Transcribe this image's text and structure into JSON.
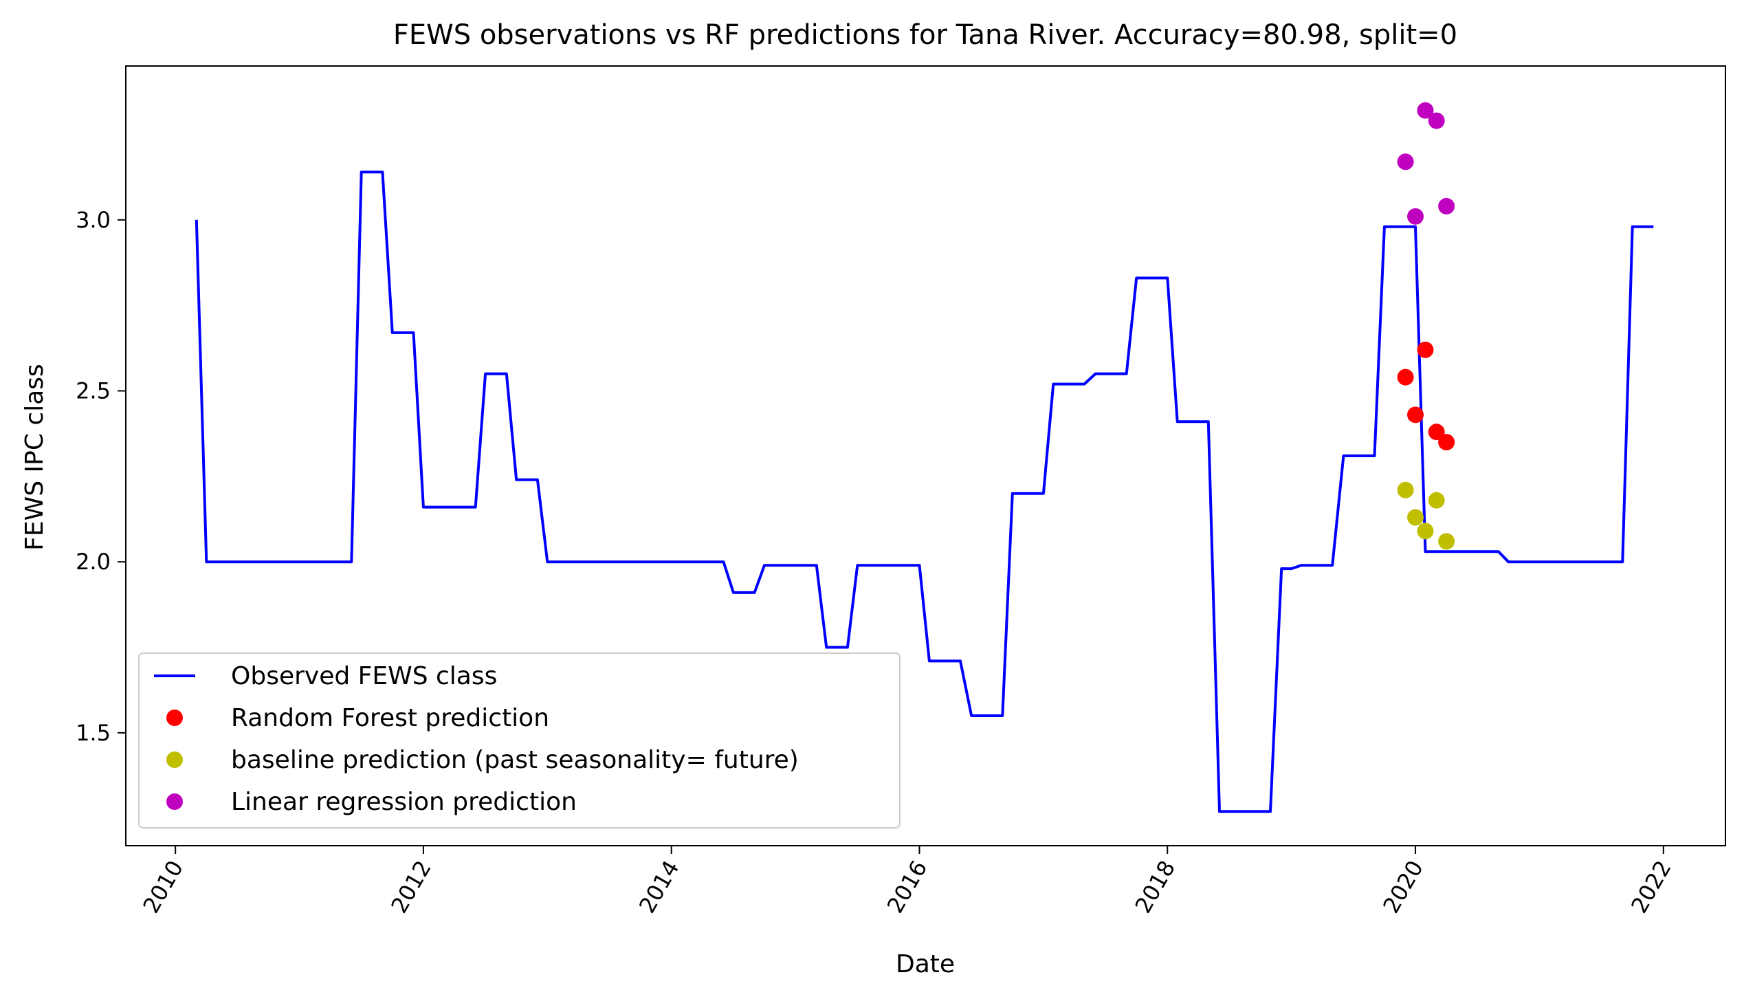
{
  "chart_data": {
    "type": "line",
    "title": "FEWS observations vs RF predictions for Tana River. Accuracy=80.98, split=0",
    "xlabel": "Date",
    "ylabel": "FEWS IPC class",
    "xlim": [
      2009.6,
      2022.5
    ],
    "ylim": [
      1.17,
      3.45
    ],
    "x_ticks": [
      {
        "value": 2010,
        "label": "2010"
      },
      {
        "value": 2012,
        "label": "2012"
      },
      {
        "value": 2014,
        "label": "2014"
      },
      {
        "value": 2016,
        "label": "2016"
      },
      {
        "value": 2018,
        "label": "2018"
      },
      {
        "value": 2020,
        "label": "2020"
      },
      {
        "value": 2022,
        "label": "2022"
      }
    ],
    "y_ticks": [
      {
        "value": 1.5,
        "label": "1.5"
      },
      {
        "value": 2.0,
        "label": "2.0"
      },
      {
        "value": 2.5,
        "label": "2.5"
      },
      {
        "value": 3.0,
        "label": "3.0"
      }
    ],
    "grid": false,
    "legend_position": "lower-left",
    "series": [
      {
        "name": "Observed FEWS class",
        "kind": "line",
        "color": "#0000ff",
        "x": [
          2010.17,
          2010.25,
          2011.42,
          2011.5,
          2011.67,
          2011.75,
          2011.92,
          2012.0,
          2012.42,
          2012.5,
          2012.67,
          2012.75,
          2012.92,
          2013.0,
          2014.42,
          2014.5,
          2014.67,
          2014.75,
          2015.17,
          2015.25,
          2015.42,
          2015.5,
          2016.0,
          2016.08,
          2016.33,
          2016.42,
          2016.67,
          2016.75,
          2017.0,
          2017.08,
          2017.33,
          2017.42,
          2017.67,
          2017.75,
          2018.0,
          2018.08,
          2018.33,
          2018.42,
          2018.83,
          2018.92,
          2019.0,
          2019.08,
          2019.33,
          2019.42,
          2019.67,
          2019.75,
          2020.0,
          2020.08,
          2020.67,
          2020.75,
          2021.67,
          2021.75,
          2021.92
        ],
        "y": [
          3.0,
          2.0,
          2.0,
          3.14,
          3.14,
          2.67,
          2.67,
          2.16,
          2.16,
          2.55,
          2.55,
          2.24,
          2.24,
          2.0,
          2.0,
          1.91,
          1.91,
          1.99,
          1.99,
          1.75,
          1.75,
          1.99,
          1.99,
          1.71,
          1.71,
          1.55,
          1.55,
          2.2,
          2.2,
          2.52,
          2.52,
          2.55,
          2.55,
          2.83,
          2.83,
          2.41,
          2.41,
          1.27,
          1.27,
          1.98,
          1.98,
          1.99,
          1.99,
          2.31,
          2.31,
          2.98,
          2.98,
          2.03,
          2.03,
          2.0,
          2.0,
          2.98,
          2.98
        ]
      },
      {
        "name": "Random Forest prediction",
        "kind": "scatter",
        "color": "#ff0000",
        "x": [
          2019.92,
          2020.0,
          2020.08,
          2020.17,
          2020.25
        ],
        "y": [
          2.54,
          2.43,
          2.62,
          2.38,
          2.35
        ]
      },
      {
        "name": "baseline prediction (past seasonality= future)",
        "kind": "scatter",
        "color": "#bfbf00",
        "x": [
          2019.92,
          2020.0,
          2020.08,
          2020.17,
          2020.25
        ],
        "y": [
          2.21,
          2.13,
          2.09,
          2.18,
          2.06
        ]
      },
      {
        "name": "Linear regression prediction",
        "kind": "scatter",
        "color": "#bf00bf",
        "x": [
          2019.92,
          2020.0,
          2020.08,
          2020.17,
          2020.25
        ],
        "y": [
          3.17,
          3.01,
          3.32,
          3.29,
          3.04
        ]
      }
    ]
  }
}
